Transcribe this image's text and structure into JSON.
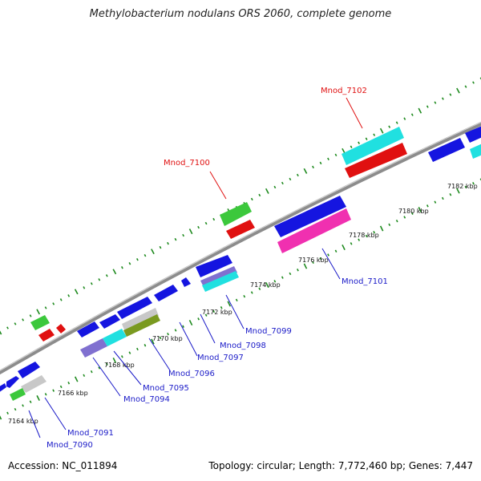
{
  "title": "Methylobacterium nodulans ORS 2060, complete genome",
  "accession": "Accession: NC_011894",
  "topology": "Topology: circular; Length: 7,772,460 bp; Genes: 7,447",
  "colors": {
    "backbone": "#8c8c8c",
    "tick": "#1e8a1e",
    "blue": "#1515e0",
    "red": "#e01010",
    "green": "#3cc83c",
    "cyan": "#20e0e0",
    "magenta": "#f030b0",
    "grey": "#c8c8c8",
    "purple": "#8070d0",
    "olive": "#7a9a20",
    "label_blue": "#1a1ac8",
    "label_red": "#e01010"
  },
  "kbp_labels": [
    "7164 kbp",
    "7166 kbp",
    "7168 kbp",
    "7170 kbp",
    "7172 kbp",
    "7174 kbp",
    "7176 kbp",
    "7178 kbp",
    "7180 kbp",
    "7182 kbp"
  ],
  "gene_labels": [
    "Mnod_7090",
    "Mnod_7091",
    "Mnod_7094",
    "Mnod_7095",
    "Mnod_7096",
    "Mnod_7097",
    "Mnod_7098",
    "Mnod_7099",
    "Mnod_7100",
    "Mnod_7101",
    "Mnod_7102"
  ]
}
